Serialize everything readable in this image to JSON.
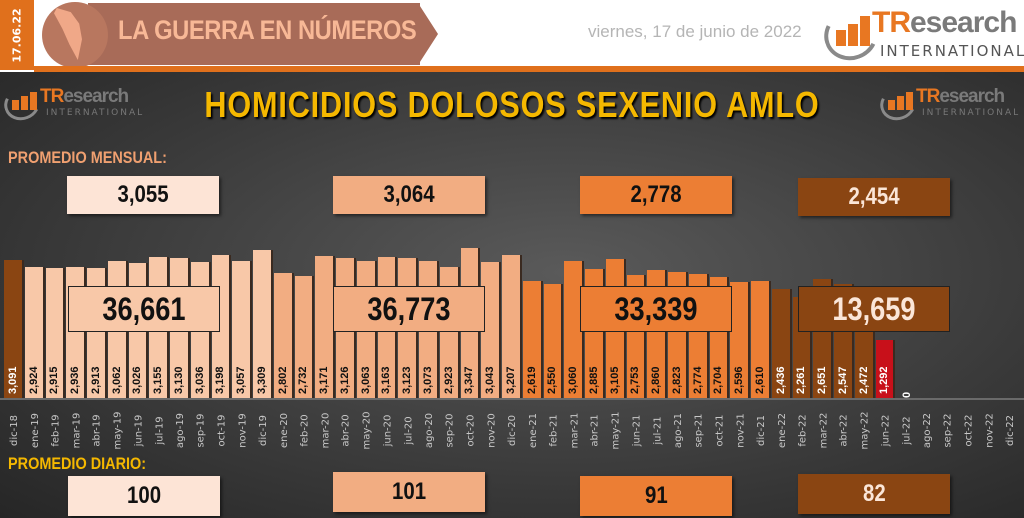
{
  "header": {
    "date_strip": "17.06.22",
    "banner_title": "LA GUERRA EN NÚMEROS",
    "date_text": "viernes, 17 de junio de 2022",
    "logo": {
      "brand_tr": "TR",
      "brand_rest": "esearch",
      "sub": "INTERNATIONAL",
      "icon": "bar-chart-arc-icon"
    }
  },
  "panel": {
    "title": "HOMICIDIOS DOLOSOS SEXENIO AMLO",
    "monthly_label": "PROMEDIO MENSUAL:",
    "daily_label": "PROMEDIO DIARIO:",
    "logo_left": {
      "brand_tr": "TR",
      "brand_rest": "esearch",
      "sub": "INTERNATIONAL"
    },
    "logo_right": {
      "brand_tr": "TR",
      "brand_rest": "esearch",
      "sub": "INTERNATIONAL"
    }
  },
  "periods": [
    {
      "monthly_avg": "3,055",
      "daily_avg": "100",
      "total": "36,661",
      "color": "#f8c8a8",
      "box_color": "#fde4d6",
      "text_color": "#111111"
    },
    {
      "monthly_avg": "3,064",
      "daily_avg": "101",
      "total": "36,773",
      "color": "#f2ad82",
      "box_color": "#f2ad82",
      "text_color": "#111111"
    },
    {
      "monthly_avg": "2,778",
      "daily_avg": "91",
      "total": "33,339",
      "color": "#ec7e34",
      "box_color": "#ec7e34",
      "text_color": "#111111"
    },
    {
      "monthly_avg": "2,454",
      "daily_avg": "82",
      "total": "13,659",
      "color": "#8a4512",
      "box_color": "#8a4512",
      "text_color": "#fbe6d8"
    }
  ],
  "colors": {
    "accent_orange": "#e0701c",
    "title_yellow": "#f5b800",
    "dec18_bar": "#8a4512",
    "current_month_bar": "#c8101a"
  },
  "chart_data": {
    "type": "bar",
    "title": "HOMICIDIOS DOLOSOS SEXENIO AMLO",
    "xlabel": "",
    "ylabel": "",
    "grid": false,
    "categories": [
      "dic-18",
      "ene-19",
      "feb-19",
      "mar-19",
      "abr-19",
      "may-19",
      "jun-19",
      "jul-19",
      "ago-19",
      "sep-19",
      "oct-19",
      "nov-19",
      "dic-19",
      "ene-20",
      "feb-20",
      "mar-20",
      "abr-20",
      "may-20",
      "jun-20",
      "jul-20",
      "ago-20",
      "sep-20",
      "oct-20",
      "nov-20",
      "dic-20",
      "ene-21",
      "feb-21",
      "mar-21",
      "abr-21",
      "may-21",
      "jun-21",
      "jul-21",
      "ago-21",
      "sep-21",
      "oct-21",
      "nov-21",
      "dic-21",
      "ene-22",
      "feb-22",
      "mar-22",
      "abr-22",
      "may-22",
      "jun-22",
      "jul-22",
      "ago-22",
      "sep-22",
      "oct-22",
      "nov-22",
      "dic-22"
    ],
    "values": [
      3091,
      2924,
      2915,
      2936,
      2913,
      3062,
      3026,
      3155,
      3130,
      3036,
      3198,
      3057,
      3309,
      2802,
      2732,
      3171,
      3126,
      3063,
      3163,
      3123,
      3073,
      2923,
      3347,
      3043,
      3207,
      2619,
      2550,
      3060,
      2885,
      3105,
      2753,
      2860,
      2823,
      2774,
      2704,
      2596,
      2610,
      2436,
      2261,
      2651,
      2547,
      2472,
      1292,
      0,
      null,
      null,
      null,
      null,
      null
    ],
    "value_labels": [
      "3,091",
      "2,924",
      "2,915",
      "2,936",
      "2,913",
      "3,062",
      "3,026",
      "3,155",
      "3,130",
      "3,036",
      "3,198",
      "3,057",
      "3,309",
      "2,802",
      "2,732",
      "3,171",
      "3,126",
      "3,063",
      "3,163",
      "3,123",
      "3,073",
      "2,923",
      "3,347",
      "3,043",
      "3,207",
      "2,619",
      "2,550",
      "3,060",
      "2,885",
      "3,105",
      "2,753",
      "2,860",
      "2,823",
      "2,774",
      "2,704",
      "2,596",
      "2,610",
      "2,436",
      "2,261",
      "2,651",
      "2,547",
      "2,472",
      "1,292",
      "0",
      "",
      "",
      "",
      "",
      ""
    ],
    "period_of_bar": [
      0,
      0,
      0,
      0,
      0,
      0,
      0,
      0,
      0,
      0,
      0,
      0,
      0,
      1,
      1,
      1,
      1,
      1,
      1,
      1,
      1,
      1,
      1,
      1,
      1,
      2,
      2,
      2,
      2,
      2,
      2,
      2,
      2,
      2,
      2,
      2,
      2,
      3,
      3,
      3,
      3,
      3,
      3,
      3,
      3,
      3,
      3,
      3,
      3
    ],
    "annotations": {
      "yearly_totals": [
        "36,661",
        "36,773",
        "33,339",
        "13,659"
      ],
      "monthly_averages": [
        "3,055",
        "3,064",
        "2,778",
        "2,454"
      ],
      "daily_averages": [
        "100",
        "101",
        "91",
        "82"
      ]
    }
  }
}
